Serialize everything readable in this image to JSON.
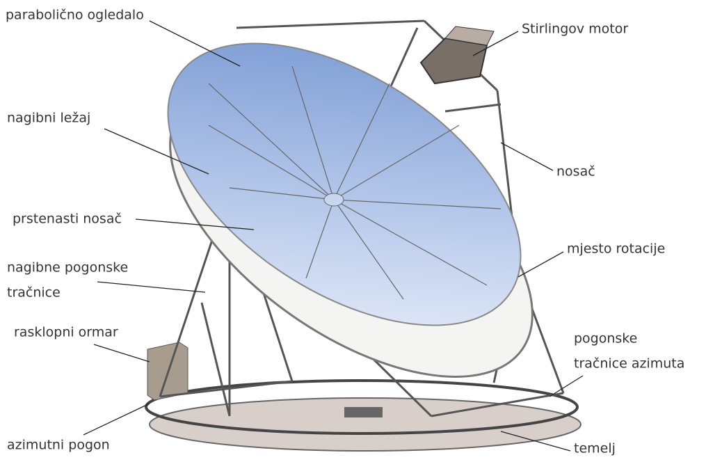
{
  "labels": [
    {
      "lines": [
        "parabolično ogledalo"
      ]
    },
    {
      "lines": [
        "Stirlingov motor"
      ]
    },
    {
      "lines": [
        "nagibni ležaj"
      ]
    },
    {
      "lines": [
        "nosač"
      ]
    },
    {
      "lines": [
        "prstenasti nosač"
      ]
    },
    {
      "lines": [
        "mjesto rotacije"
      ]
    },
    {
      "lines": [
        "nagibne pogonske",
        "tračnice"
      ]
    },
    {
      "lines": [
        "rasklopni ormar"
      ]
    },
    {
      "lines": [
        "pogonske",
        "tračnice azimuta"
      ]
    },
    {
      "lines": [
        "azimutni pogon"
      ]
    },
    {
      "lines": [
        "temelj"
      ]
    }
  ]
}
